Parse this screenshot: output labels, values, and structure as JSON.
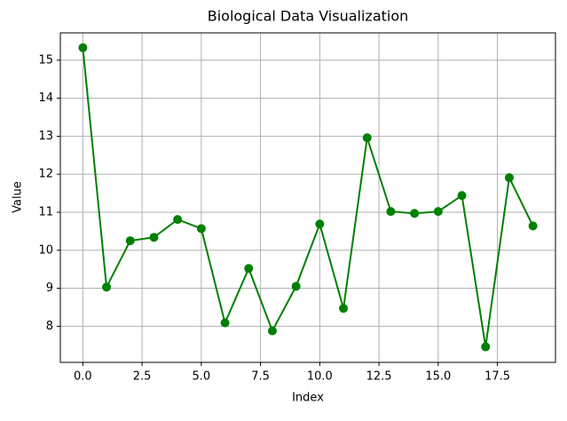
{
  "chart_data": {
    "type": "line",
    "title": "Biological Data Visualization",
    "x_label": "Index",
    "y_label": "Value",
    "x": [
      0,
      1,
      2,
      3,
      4,
      5,
      6,
      7,
      8,
      9,
      10,
      11,
      12,
      13,
      14,
      15,
      16,
      17,
      18,
      19
    ],
    "series": [
      {
        "color": "#008000",
        "values": [
          15.33,
          9.03,
          10.25,
          10.34,
          10.81,
          10.57,
          8.09,
          9.52,
          7.88,
          9.05,
          10.69,
          8.47,
          12.96,
          11.02,
          10.97,
          11.02,
          11.44,
          7.46,
          11.91,
          10.64
        ]
      }
    ],
    "xlim": [
      -0.95,
      19.95
    ],
    "ylim": [
      7.05,
      15.72
    ],
    "xticks": [
      {
        "value": 0,
        "label": "0.0"
      },
      2.5,
      {
        "value": 5,
        "label": "5.0"
      },
      7.5,
      {
        "value": 10,
        "label": "10.0"
      },
      12.5,
      {
        "value": 15,
        "label": "15.0"
      },
      17.5
    ],
    "yticks": [
      8,
      9,
      10,
      11,
      12,
      13,
      14,
      15
    ],
    "grid": true
  }
}
